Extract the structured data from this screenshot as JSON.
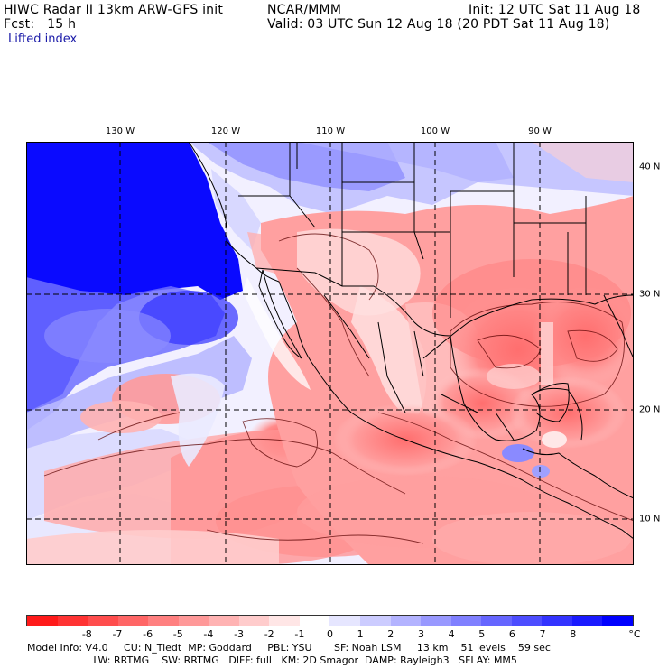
{
  "header": {
    "title": "HIWC Radar II 13km ARW-GFS init",
    "center": "NCAR/MMM",
    "init": "Init: 12 UTC Sat 11 Aug 18",
    "fcst": "Fcst:   15 h",
    "valid": "Valid: 03 UTC Sun 12 Aug 18 (20 PDT Sat 11 Aug 18)",
    "field": "Lifted index"
  },
  "lon_labels": [
    "130 W",
    "120 W",
    "110 W",
    "100 W",
    "90 W"
  ],
  "lat_labels": [
    "40 N",
    "30 N",
    "20 N",
    "10 N"
  ],
  "colorbar": {
    "colors": [
      "#ff1a1a",
      "#ff3333",
      "#ff4d4d",
      "#ff6666",
      "#ff8080",
      "#ff9999",
      "#ffb3b3",
      "#ffcccc",
      "#ffe6e6",
      "#ffffff",
      "#e6e6ff",
      "#ccccff",
      "#b3b3ff",
      "#9999ff",
      "#8080ff",
      "#6666ff",
      "#4d4dff",
      "#3333ff",
      "#1a1aff",
      "#0000ff"
    ],
    "labels": [
      "-8",
      "-7",
      "-6",
      "-5",
      "-4",
      "-3",
      "-2",
      "-1",
      "0",
      "1",
      "2",
      "3",
      "4",
      "5",
      "6",
      "7",
      "8"
    ],
    "unit": "°C"
  },
  "footer": {
    "line1": "Model Info: V4.0     CU: N_Tiedt  MP: Goddard     PBL: YSU       SF: Noah LSM     13 km    51 levels    59 sec",
    "line2": "                     LW: RRTMG    SW: RRTMG   DIFF: full   KM: 2D Smagor  DAMP: Rayleigh3   SFLAY: MM5"
  }
}
